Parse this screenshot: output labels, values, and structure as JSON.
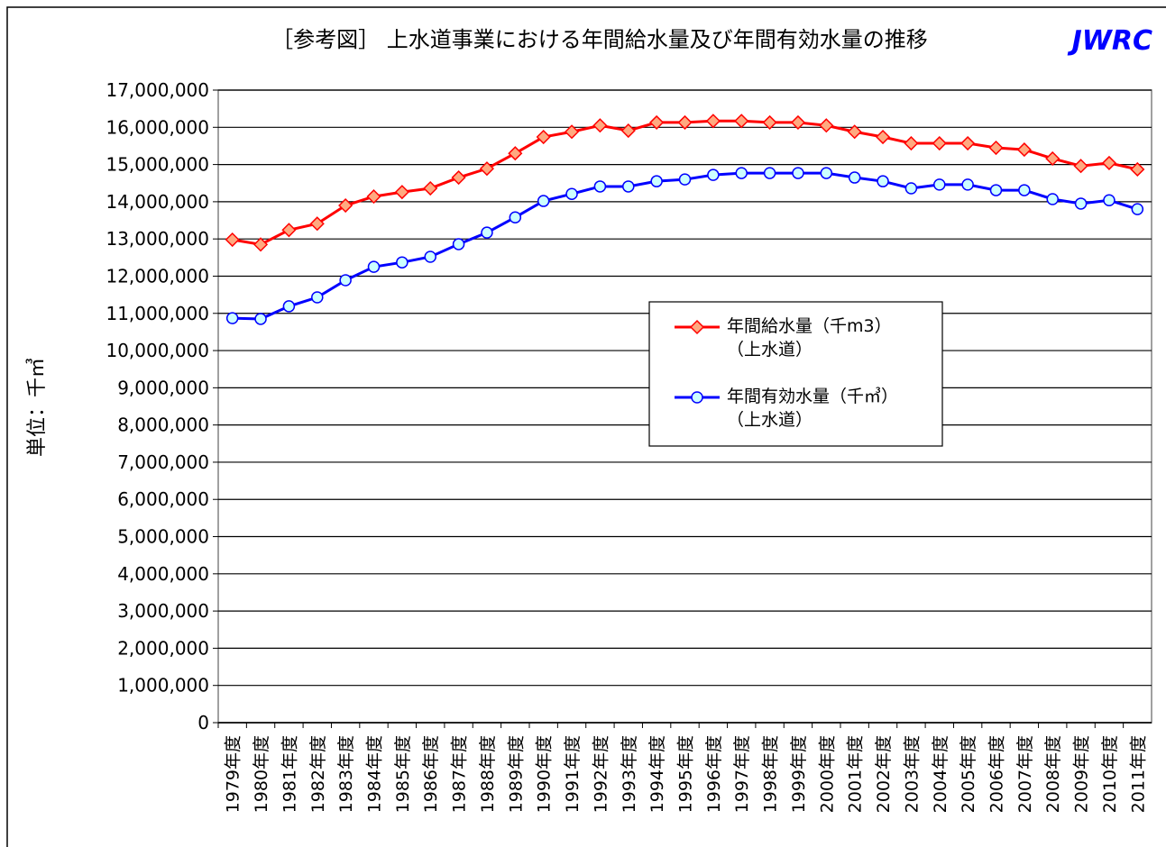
{
  "chart_data": {
    "type": "line",
    "title": "［参考図］ 上水道事業における年間給水量及び年間有効水量の推移",
    "brand": "JWRC",
    "y_label": "単位：千㎥",
    "categories": [
      "1979年度",
      "1980年度",
      "1981年度",
      "1982年度",
      "1983年度",
      "1984年度",
      "1985年度",
      "1986年度",
      "1987年度",
      "1988年度",
      "1989年度",
      "1990年度",
      "1991年度",
      "1992年度",
      "1993年度",
      "1994年度",
      "1995年度",
      "1996年度",
      "1997年度",
      "1998年度",
      "1999年度",
      "2000年度",
      "2001年度",
      "2002年度",
      "2003年度",
      "2004年度",
      "2005年度",
      "2006年度",
      "2007年度",
      "2008年度",
      "2009年度",
      "2010年度",
      "2011年度"
    ],
    "series": [
      {
        "name": "年間給水量（千m3）\n（上水道）",
        "color": "#ff0000",
        "marker": "diamond",
        "marker_fill": "#ffa980",
        "values": [
          12980000,
          12850000,
          13240000,
          13410000,
          13900000,
          14140000,
          14260000,
          14360000,
          14650000,
          14890000,
          15300000,
          15740000,
          15880000,
          16050000,
          15910000,
          16130000,
          16130000,
          16170000,
          16170000,
          16130000,
          16130000,
          16050000,
          15880000,
          15740000,
          15570000,
          15570000,
          15570000,
          15450000,
          15400000,
          15160000,
          14960000,
          15040000,
          14870000
        ]
      },
      {
        "name": "年間有効水量（千㎥）\n（上水道）",
        "color": "#0000ff",
        "marker": "circle",
        "marker_fill": "#ccffff",
        "values": [
          10870000,
          10850000,
          11190000,
          11430000,
          11890000,
          12250000,
          12370000,
          12520000,
          12860000,
          13170000,
          13580000,
          14020000,
          14210000,
          14410000,
          14410000,
          14550000,
          14600000,
          14720000,
          14770000,
          14770000,
          14770000,
          14770000,
          14650000,
          14550000,
          14360000,
          14460000,
          14460000,
          14310000,
          14310000,
          14070000,
          13950000,
          14040000,
          13800000
        ]
      }
    ],
    "ylim": [
      0,
      17000000
    ],
    "yticks": [
      0,
      {
        "value": 1000000,
        "label": "1,000,000"
      },
      {
        "value": 2000000,
        "label": "2,000,000"
      },
      {
        "value": 3000000,
        "label": "3,000,000"
      },
      {
        "value": 4000000,
        "label": "4,000,000"
      },
      {
        "value": 5000000,
        "label": "5,000,000"
      },
      {
        "value": 6000000,
        "label": "6,000,000"
      },
      {
        "value": 7000000,
        "label": "7,000,000"
      },
      {
        "value": 8000000,
        "label": "8,000,000"
      },
      {
        "value": 9000000,
        "label": "9,000,000"
      },
      {
        "value": 10000000,
        "label": "10,000,000"
      },
      {
        "value": 11000000,
        "label": "11,000,000"
      },
      {
        "value": 12000000,
        "label": "12,000,000"
      },
      {
        "value": 13000000,
        "label": "13,000,000"
      },
      {
        "value": 14000000,
        "label": "14,000,000"
      },
      {
        "value": 15000000,
        "label": "15,000,000"
      },
      {
        "value": 16000000,
        "label": "16,000,000"
      },
      {
        "value": 17000000,
        "label": "17,000,000"
      }
    ],
    "grid": true
  }
}
